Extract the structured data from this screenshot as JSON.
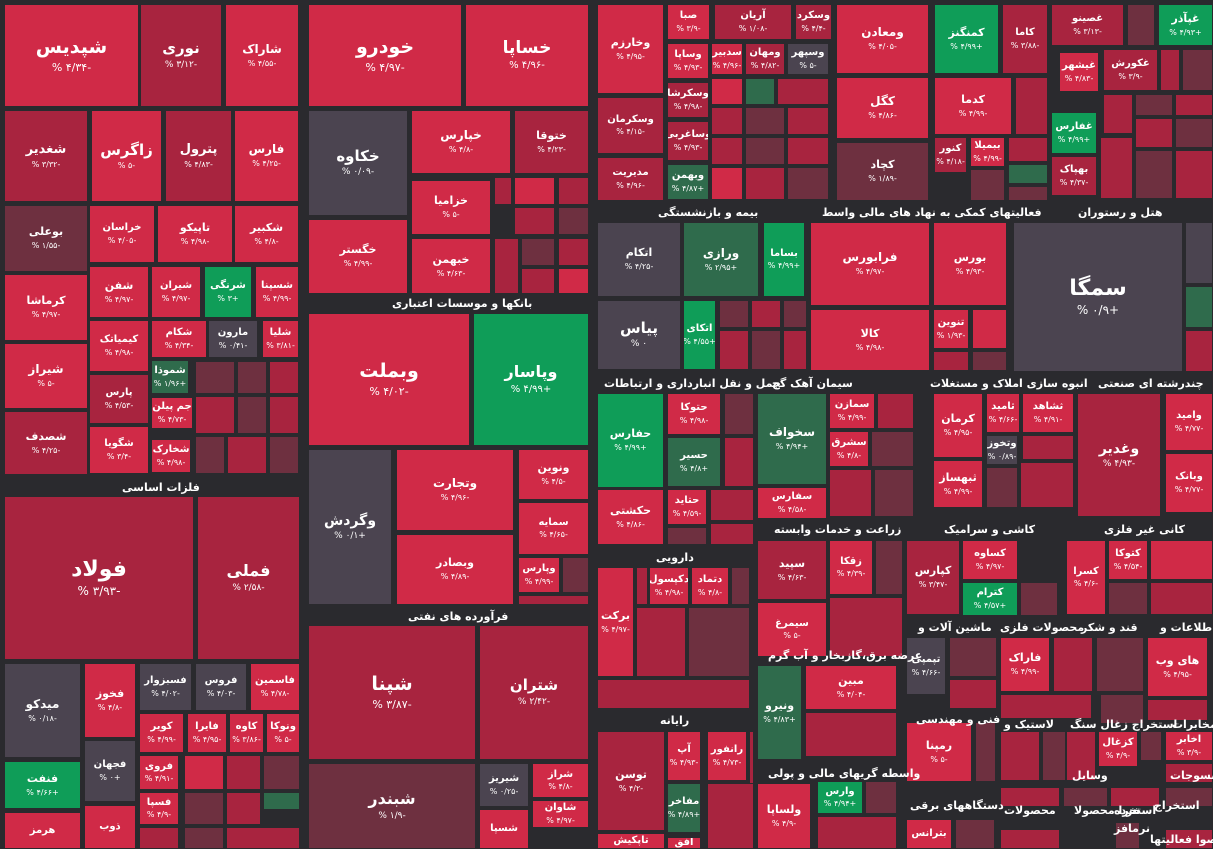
{
  "colors": {
    "deep_loss": "#d02a47",
    "loss": "#a8243f",
    "mild_loss": "#6e3040",
    "flat": "#4b4450",
    "gain": "#0f9d58",
    "mild_gain": "#2f6b4c",
    "background": "#2a2a2e"
  },
  "chart_data": {
    "type": "treemap",
    "sectors": [
      "فلزات اساسی",
      "بانکها و موسسات اعتباری",
      "فرآورده های نفتی",
      "بیمه و بازنشستگی",
      "فعالیتهای کمکی به نهاد های مالی واسط",
      "هتل و رستوران",
      "حمل و نقل انبارداری و ارتباطات",
      "سیمان آهک گچ",
      "انبوه سازی املاک و مستغلات",
      "چندرشته ای صنعتی",
      "زراعت و خدمات وابسته",
      "کاشی و سرامیک",
      "کانی غیر فلزی",
      "دارویی",
      "ماشین آلات و",
      "محصولات فلزی",
      "قند و شکر",
      "اطلاعات و",
      "عرضه برق،گازبخار و آب گرم",
      "فنی و مهندسی",
      "رایانه",
      "لاستیک و",
      "استخراج زغال سنگ",
      "مخابرات",
      "واسطه گریهای مالی و پولی",
      "دستگاههای برقی",
      "محصولات",
      "منسوجات",
      "وسایل",
      "استخراج",
      "محصوا فعالیتها",
      "استخرا محصولا",
      "خرده",
      "نرمافز"
    ],
    "tiles": [
      {
        "name": "شپدیس",
        "change": "-۴/۳۴ %"
      },
      {
        "name": "نوری",
        "change": "-۳/۱۲ %"
      },
      {
        "name": "شاراک",
        "change": "-۴/۵۵ %"
      },
      {
        "name": "خودرو",
        "change": "-۴/۹۷ %"
      },
      {
        "name": "خساپا",
        "change": "-۴/۹۶ %"
      },
      {
        "name": "شغدیر",
        "change": "-۳/۳۲ %"
      },
      {
        "name": "زاگرس",
        "change": "-۵ %"
      },
      {
        "name": "پترول",
        "change": "-۴/۸۳ %"
      },
      {
        "name": "فارس",
        "change": "-۴/۲۵ %"
      },
      {
        "name": "خکاوه",
        "change": "-۰/۰۹ %"
      },
      {
        "name": "خپارس",
        "change": "-۴/۸ %"
      },
      {
        "name": "ختوقا",
        "change": "-۴/۲۳ %"
      },
      {
        "name": "خزامیا",
        "change": "-۵ %"
      },
      {
        "name": "خگستر",
        "change": "-۴/۹۹ %"
      },
      {
        "name": "خبهمن",
        "change": "-۴/۶۳ %"
      },
      {
        "name": "بوعلی",
        "change": "-۱/۵۵ %"
      },
      {
        "name": "خراسان",
        "change": "-۴/۰۵ %"
      },
      {
        "name": "تاپیکو",
        "change": "-۴/۹۸ %"
      },
      {
        "name": "شکبیر",
        "change": "-۴/۸ %"
      },
      {
        "name": "کرماشا",
        "change": "-۴/۹۷ %"
      },
      {
        "name": "شفن",
        "change": "-۴/۹۷ %"
      },
      {
        "name": "شیران",
        "change": "-۴/۹۷ %"
      },
      {
        "name": "شرنگی",
        "change": "+۳ %"
      },
      {
        "name": "شسپنا",
        "change": "-۴/۹۹ %"
      },
      {
        "name": "شکام",
        "change": "-۴/۳۴ %"
      },
      {
        "name": "مارون",
        "change": "-۰/۴۱ %"
      },
      {
        "name": "شلیا",
        "change": "-۳/۸۱ %"
      },
      {
        "name": "کیمیاتک",
        "change": "-۴/۹۸ %"
      },
      {
        "name": "شیراز",
        "change": "-۵ %"
      },
      {
        "name": "شموذا",
        "change": "+۱/۹۶ %"
      },
      {
        "name": "پارس",
        "change": "-۴/۵۳ %"
      },
      {
        "name": "جم پیلن",
        "change": "-۴/۷۳ %"
      },
      {
        "name": "شصدف",
        "change": "-۴/۲۵ %"
      },
      {
        "name": "شگویا",
        "change": "-۳/۴ %"
      },
      {
        "name": "شخارک",
        "change": "-۴/۹۸ %"
      },
      {
        "name": "وبملت",
        "change": "-۴/۰۲ %"
      },
      {
        "name": "وپاسار",
        "change": "+۴/۹۹ %"
      },
      {
        "name": "وگردش",
        "change": "+۰/۱ %"
      },
      {
        "name": "وتجارت",
        "change": "-۴/۹۶ %"
      },
      {
        "name": "ونوین",
        "change": "-۴/۵ %"
      },
      {
        "name": "سمایه",
        "change": "-۴/۶۵ %"
      },
      {
        "name": "وبصادر",
        "change": "-۴/۸۹ %"
      },
      {
        "name": "وپارس",
        "change": "-۴/۹۹ %"
      },
      {
        "name": "فولاد",
        "change": "-۳/۹۳ %"
      },
      {
        "name": "فملی",
        "change": "-۲/۵۸ %"
      },
      {
        "name": "میدکو",
        "change": "-۰/۱۸ %"
      },
      {
        "name": "فخوز",
        "change": "-۴/۸ %"
      },
      {
        "name": "فسبزوار",
        "change": "-۴/۰۲ %"
      },
      {
        "name": "فروس",
        "change": "-۴/۰۳ %"
      },
      {
        "name": "فاسمین",
        "change": "-۴/۷۸ %"
      },
      {
        "name": "فجهان",
        "change": "+۰ %"
      },
      {
        "name": "کویر",
        "change": "-۴/۹۹ %"
      },
      {
        "name": "فایرا",
        "change": "-۴/۹۵ %"
      },
      {
        "name": "کاوه",
        "change": "-۳/۸۶ %"
      },
      {
        "name": "ونوکا",
        "change": "-۵ %"
      },
      {
        "name": "فروی",
        "change": "-۴/۹۱ %"
      },
      {
        "name": "فنفت",
        "change": "+۴/۶۶ %"
      },
      {
        "name": "فسپا",
        "change": "-۴/۹ %"
      },
      {
        "name": "ذوب",
        "change": ""
      },
      {
        "name": "هرمز",
        "change": ""
      },
      {
        "name": "شپنا",
        "change": "-۳/۸۷ %"
      },
      {
        "name": "شتران",
        "change": "-۲/۴۲ %"
      },
      {
        "name": "شبندر",
        "change": "-۱/۹ %"
      },
      {
        "name": "شیریز",
        "change": "-۰/۲۵ %"
      },
      {
        "name": "شراز",
        "change": "-۴/۸ %"
      },
      {
        "name": "شاوان",
        "change": "-۴/۹۷ %"
      },
      {
        "name": "شسپا",
        "change": ""
      },
      {
        "name": "وخارزم",
        "change": "-۴/۹۵ %"
      },
      {
        "name": "صبا",
        "change": "-۳/۹ %"
      },
      {
        "name": "آریان",
        "change": "-۱/۰۸ %"
      },
      {
        "name": "وسکرد",
        "change": "-۴/۴ %"
      },
      {
        "name": "وساپا",
        "change": "-۴/۹۳ %"
      },
      {
        "name": "سدبیر",
        "change": "-۴/۹۶ %"
      },
      {
        "name": "ومهان",
        "change": "-۴/۸۲ %"
      },
      {
        "name": "وسپهر",
        "change": "-۵ %"
      },
      {
        "name": "وسکرشا",
        "change": "-۴/۹۸ %"
      },
      {
        "name": "وسکرمان",
        "change": "-۴/۱۵ %"
      },
      {
        "name": "وساغربی",
        "change": "-۴/۹۳ %"
      },
      {
        "name": "مدیریت",
        "change": "-۴/۹۶ %"
      },
      {
        "name": "وبهمن",
        "change": "+۴/۸۷ %"
      },
      {
        "name": "ومعادن",
        "change": "-۴/۰۵ %"
      },
      {
        "name": "کمنگنز",
        "change": "+۴/۹۹ %"
      },
      {
        "name": "کاما",
        "change": "-۳/۸۸ %"
      },
      {
        "name": "کگل",
        "change": "-۴/۸۶ %"
      },
      {
        "name": "کدما",
        "change": "-۴/۹۹ %"
      },
      {
        "name": "کنور",
        "change": "-۴/۱۸ %"
      },
      {
        "name": "ببمیلا",
        "change": "-۴/۹۹ %"
      },
      {
        "name": "کچاد",
        "change": "-۱/۸۹ %"
      },
      {
        "name": "غصینو",
        "change": "-۳/۱۳ %"
      },
      {
        "name": "غپآذر",
        "change": "+۴/۹۳ %"
      },
      {
        "name": "غکورش",
        "change": "-۳/۹ %"
      },
      {
        "name": "غیشهر",
        "change": "-۴/۸۳ %"
      },
      {
        "name": "غفارس",
        "change": "+۴/۹۹ %"
      },
      {
        "name": "بهپاک",
        "change": "-۴/۳۷ %"
      },
      {
        "name": "اتکام",
        "change": "-۴/۲۵ %"
      },
      {
        "name": "ورازی",
        "change": "+۲/۹۵ %"
      },
      {
        "name": "بساما",
        "change": "+۴/۹۹ %"
      },
      {
        "name": "پیاس",
        "change": "۰ %"
      },
      {
        "name": "اتکای",
        "change": "+۴/۵۵ %"
      },
      {
        "name": "فرابورس",
        "change": "-۴/۹۷ %"
      },
      {
        "name": "بورس",
        "change": "-۴/۹۳ %"
      },
      {
        "name": "کالا",
        "change": "-۴/۹۸ %"
      },
      {
        "name": "تنوین",
        "change": "-۱/۹۳ %"
      },
      {
        "name": "سمگا",
        "change": "+۰/۹ %"
      },
      {
        "name": "حفارس",
        "change": "+۴/۹۹ %"
      },
      {
        "name": "حتوکا",
        "change": "-۴/۹۸ %"
      },
      {
        "name": "حسیر",
        "change": "+۴/۸ %"
      },
      {
        "name": "حتاید",
        "change": "-۴/۵۹ %"
      },
      {
        "name": "حکشتی",
        "change": "-۴/۸۶ %"
      },
      {
        "name": "سخواف",
        "change": "+۴/۹۴ %"
      },
      {
        "name": "سمازن",
        "change": "-۴/۹۹ %"
      },
      {
        "name": "سفارس",
        "change": "-۴/۵۸ %"
      },
      {
        "name": "سشرق",
        "change": "-۴/۸ %"
      },
      {
        "name": "کرمان",
        "change": "-۴/۹۵ %"
      },
      {
        "name": "ثامید",
        "change": "-۴/۶۶ %"
      },
      {
        "name": "ثشاهد",
        "change": "-۴/۹۱ %"
      },
      {
        "name": "وتخوز",
        "change": "-۰/۸۹ %"
      },
      {
        "name": "ثبهساز",
        "change": "-۴/۹۹ %"
      },
      {
        "name": "وغدیر",
        "change": "-۴/۹۳ %"
      },
      {
        "name": "وامید",
        "change": "-۴/۷۷ %"
      },
      {
        "name": "وبانک",
        "change": "-۴/۷۷ %"
      },
      {
        "name": "سپید",
        "change": "-۴/۶۳ %"
      },
      {
        "name": "زقکا",
        "change": "-۴/۳۹ %"
      },
      {
        "name": "سیمرغ",
        "change": "-۵ %"
      },
      {
        "name": "کپارس",
        "change": "-۳/۴۷ %"
      },
      {
        "name": "کساوه",
        "change": "-۴/۹۷ %"
      },
      {
        "name": "کترام",
        "change": "+۴/۵۷ %"
      },
      {
        "name": "کتوکا",
        "change": "-۴/۵۴ %"
      },
      {
        "name": "کسرا",
        "change": "-۴/۶ %"
      },
      {
        "name": "برکت",
        "change": "-۴/۹۷ %"
      },
      {
        "name": "دکپسول",
        "change": "-۴/۹۸ %"
      },
      {
        "name": "دتماد",
        "change": "-۴/۸ %"
      },
      {
        "name": "تپمپی",
        "change": "-۴/۶۶ %"
      },
      {
        "name": "فاراک",
        "change": "-۴/۹۹ %"
      },
      {
        "name": "های وب",
        "change": "-۴/۹۵ %"
      },
      {
        "name": "مبین",
        "change": "-۴/۰۴ %"
      },
      {
        "name": "ونیرو",
        "change": "+۴/۸۳ %"
      },
      {
        "name": "رمپنا",
        "change": "-۵ %"
      },
      {
        "name": "توسن",
        "change": "-۴/۲ %"
      },
      {
        "name": "آپ",
        "change": "-۴/۹۳ %"
      },
      {
        "name": "رانفور",
        "change": "-۴/۷۳ %"
      },
      {
        "name": "مفاخر",
        "change": "+۴/۸۹ %"
      },
      {
        "name": "کزغال",
        "change": "-۴/۹ %"
      },
      {
        "name": "اخابر",
        "change": "-۳/۹ %"
      },
      {
        "name": "وارس",
        "change": "+۴/۹۴ %"
      },
      {
        "name": "ولساپا",
        "change": "-۴/۹ %"
      },
      {
        "name": "بترانس",
        "change": ""
      },
      {
        "name": "تاپکیش",
        "change": ""
      },
      {
        "name": "افق",
        "change": ""
      }
    ]
  }
}
